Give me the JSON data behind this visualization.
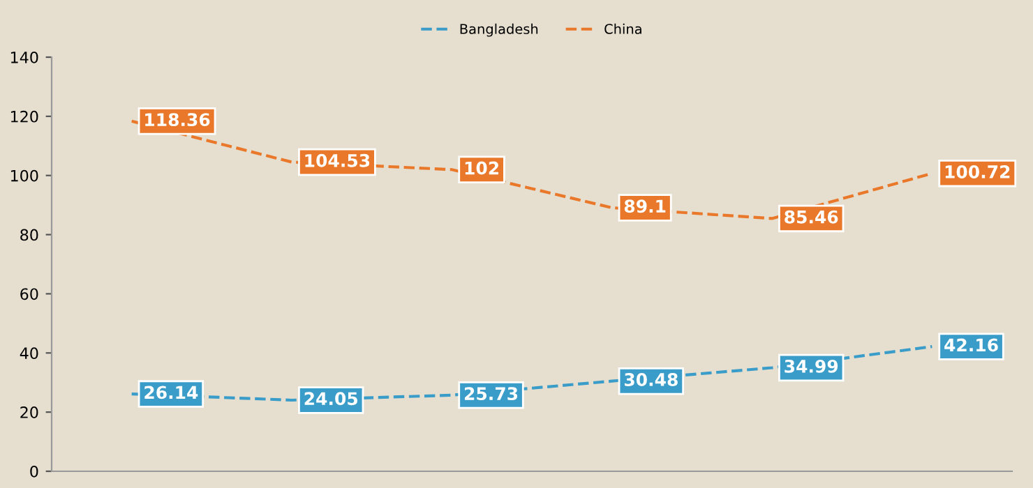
{
  "chart_data": {
    "type": "line",
    "categories": [
      null,
      null,
      null,
      null,
      null,
      null
    ],
    "series": [
      {
        "name": "Bangladesh",
        "color": "#3a9cc8",
        "values": [
          26.14,
          24.05,
          25.73,
          30.48,
          34.99,
          42.16
        ]
      },
      {
        "name": "China",
        "color": "#e9782a",
        "values": [
          118.36,
          104.53,
          102,
          89.1,
          85.46,
          100.72
        ]
      }
    ],
    "ylim": [
      0,
      140
    ],
    "yticks": [
      0,
      20,
      40,
      60,
      80,
      100,
      120,
      140
    ],
    "grid": false,
    "legend": "top",
    "line_style": "dashed",
    "marker": "none",
    "data_labels": true
  }
}
